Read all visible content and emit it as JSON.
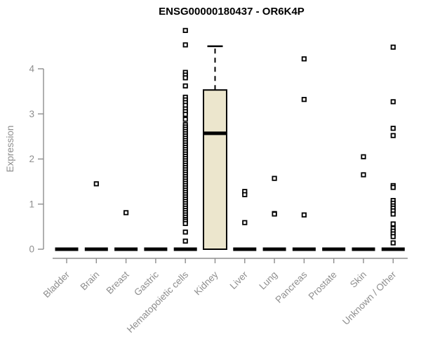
{
  "title": "ENSG00000180437 - OR6K4P",
  "colors": {
    "background": "#ffffff",
    "title": "#000000",
    "axis": "#8e8e8e",
    "axis_text": "#8e8e8e",
    "box_fill": "#ece6cd",
    "box_stroke": "#000000",
    "zero_bar": "#000000",
    "outlier_fill": "#ffffff",
    "outlier_stroke": "#000000"
  },
  "chart_data": {
    "type": "boxplot",
    "title": "ENSG00000180437 - OR6K4P",
    "xlabel": "",
    "ylabel": "Expression",
    "ylim": [
      0,
      5
    ],
    "yticks": [
      0,
      1,
      2,
      3,
      4
    ],
    "grid": false,
    "legend": "none",
    "categories": [
      "Bladder",
      "Brain",
      "Breast",
      "Gastric",
      "Hematopoietic cells",
      "Kidney",
      "Liver",
      "Lung",
      "Pancreas",
      "Prostate",
      "Skin",
      "Unknown / Other"
    ],
    "series": [
      {
        "category": "Bladder",
        "q1": 0,
        "median": 0,
        "q3": 0,
        "whisker_low": 0,
        "whisker_high": 0,
        "outliers": []
      },
      {
        "category": "Brain",
        "q1": 0,
        "median": 0,
        "q3": 0,
        "whisker_low": 0,
        "whisker_high": 0,
        "outliers": [
          1.45
        ]
      },
      {
        "category": "Breast",
        "q1": 0,
        "median": 0,
        "q3": 0,
        "whisker_low": 0,
        "whisker_high": 0,
        "outliers": [
          0.81
        ]
      },
      {
        "category": "Gastric",
        "q1": 0,
        "median": 0,
        "q3": 0,
        "whisker_low": 0,
        "whisker_high": 0,
        "outliers": []
      },
      {
        "category": "Hematopoietic cells",
        "q1": 0,
        "median": 0,
        "q3": 0,
        "whisker_low": 0,
        "whisker_high": 0,
        "outliers": [
          4.85,
          4.53,
          3.92,
          3.86,
          3.8,
          3.62,
          3.37,
          3.31,
          3.25,
          3.19,
          3.11,
          3.05,
          2.99,
          2.88,
          2.76,
          2.71,
          2.66,
          2.61,
          2.56,
          2.51,
          2.46,
          2.41,
          2.36,
          2.31,
          2.26,
          2.21,
          2.16,
          2.11,
          2.06,
          2.01,
          1.96,
          1.91,
          1.86,
          1.81,
          1.76,
          1.71,
          1.66,
          1.61,
          1.56,
          1.51,
          1.46,
          1.41,
          1.36,
          1.31,
          1.26,
          1.21,
          1.16,
          1.11,
          1.06,
          1.01,
          0.96,
          0.91,
          0.86,
          0.81,
          0.76,
          0.71,
          0.66,
          0.62,
          0.57,
          0.38,
          0.18
        ]
      },
      {
        "category": "Kidney",
        "q1": 0,
        "median": 2.57,
        "q3": 3.53,
        "whisker_low": 0,
        "whisker_high": 4.5,
        "outliers": []
      },
      {
        "category": "Liver",
        "q1": 0,
        "median": 0,
        "q3": 0,
        "whisker_low": 0,
        "whisker_high": 0,
        "outliers": [
          1.28,
          1.21,
          0.59
        ]
      },
      {
        "category": "Lung",
        "q1": 0,
        "median": 0,
        "q3": 0,
        "whisker_low": 0,
        "whisker_high": 0,
        "outliers": [
          1.57,
          0.79,
          0.78
        ]
      },
      {
        "category": "Pancreas",
        "q1": 0,
        "median": 0,
        "q3": 0,
        "whisker_low": 0,
        "whisker_high": 0,
        "outliers": [
          4.22,
          3.32,
          0.76
        ]
      },
      {
        "category": "Prostate",
        "q1": 0,
        "median": 0,
        "q3": 0,
        "whisker_low": 0,
        "whisker_high": 0,
        "outliers": []
      },
      {
        "category": "Skin",
        "q1": 0,
        "median": 0,
        "q3": 0,
        "whisker_low": 0,
        "whisker_high": 0,
        "outliers": [
          2.05,
          1.65
        ]
      },
      {
        "category": "Unknown / Other",
        "q1": 0,
        "median": 0,
        "q3": 0,
        "whisker_low": 0,
        "whisker_high": 0,
        "outliers": [
          4.48,
          3.27,
          2.68,
          2.52,
          1.41,
          1.37,
          1.08,
          1.02,
          0.96,
          0.91,
          0.85,
          0.78,
          0.56,
          0.46,
          0.4,
          0.34,
          0.28,
          0.14
        ]
      }
    ]
  }
}
